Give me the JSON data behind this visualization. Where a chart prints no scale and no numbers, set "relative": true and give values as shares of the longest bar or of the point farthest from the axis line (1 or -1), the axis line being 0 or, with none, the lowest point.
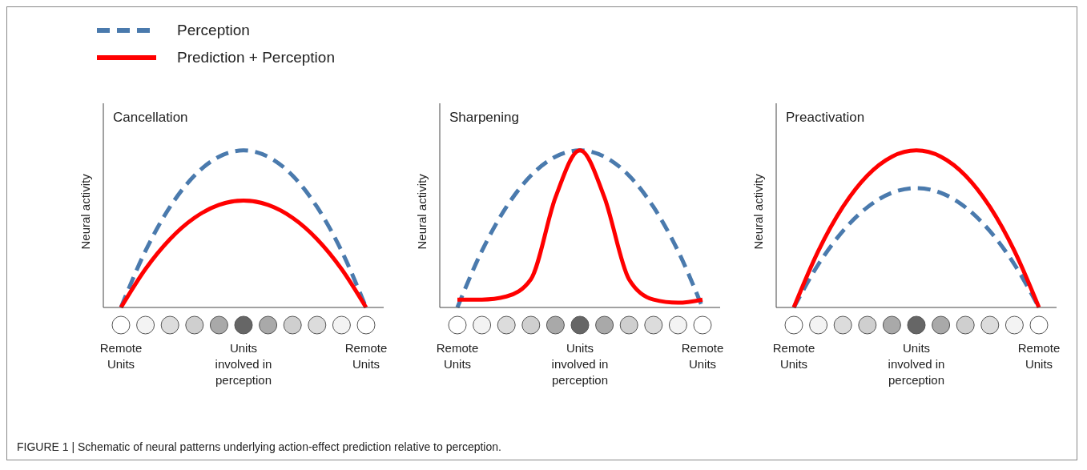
{
  "chart_data": [
    {
      "type": "line",
      "title": "Cancellation",
      "ylabel": "Neural activity",
      "relative": true,
      "legend": "top left",
      "categories": [
        "Remote Units",
        null,
        null,
        null,
        null,
        "Units involved in perception",
        null,
        null,
        null,
        null,
        "Remote Units"
      ],
      "series": [
        {
          "name": "Perception",
          "color": "#4a7aad",
          "line_style": "dashed",
          "values": [
            0,
            0.36,
            0.64,
            0.84,
            0.96,
            1,
            0.96,
            0.84,
            0.64,
            0.36,
            0
          ]
        },
        {
          "name": "Prediction + Perception",
          "color": "#ff0000",
          "line_style": "solid",
          "values": [
            0,
            0.245,
            0.435,
            0.571,
            0.653,
            0.68,
            0.653,
            0.571,
            0.435,
            0.245,
            0
          ]
        }
      ]
    },
    {
      "type": "line",
      "title": "Sharpening",
      "ylabel": "Neural activity",
      "relative": true,
      "categories": [
        "Remote Units",
        null,
        null,
        null,
        null,
        "Units involved in perception",
        null,
        null,
        null,
        null,
        "Remote Units"
      ],
      "series": [
        {
          "color": "#4a7aad",
          "line_style": "dashed",
          "values": [
            0,
            0.36,
            0.64,
            0.84,
            0.96,
            1,
            0.96,
            0.84,
            0.64,
            0.36,
            0
          ]
        },
        {
          "color": "#ff0000",
          "line_style": "solid",
          "values": [
            0.05,
            0.05,
            0.07,
            0.18,
            0.7,
            1,
            0.7,
            0.18,
            0.05,
            0.03,
            0.05
          ]
        }
      ]
    },
    {
      "type": "line",
      "title": "Preactivation",
      "ylabel": "Neural activity",
      "relative": true,
      "categories": [
        "Remote Units",
        null,
        null,
        null,
        null,
        "Units involved in perception",
        null,
        null,
        null,
        null,
        "Remote Units"
      ],
      "annotations": [
        "FIGURE 1 | Schematic of neural patterns underlying action-effect prediction relative to perception."
      ],
      "series": [
        {
          "color": "#4a7aad",
          "line_style": "dashed",
          "values": [
            0,
            0.274,
            0.486,
            0.638,
            0.73,
            0.76,
            0.73,
            0.638,
            0.486,
            0.274,
            0
          ]
        },
        {
          "color": "#ff0000",
          "line_style": "solid",
          "values": [
            0,
            0.36,
            0.64,
            0.84,
            0.96,
            1,
            0.96,
            0.84,
            0.64,
            0.36,
            0
          ]
        }
      ]
    }
  ]
}
